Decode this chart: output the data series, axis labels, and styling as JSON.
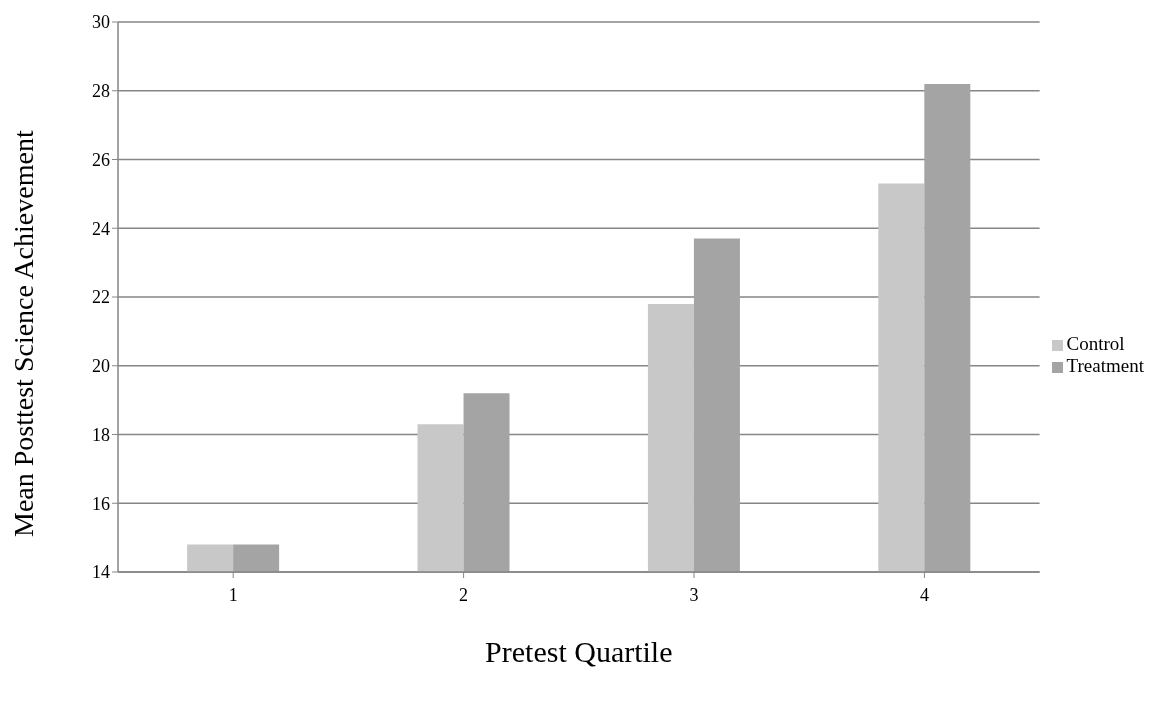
{
  "chart_data": {
    "type": "bar",
    "xlabel": "Pretest Quartile",
    "ylabel": "Mean Posttest Science Achievement",
    "categories": [
      "1",
      "2",
      "3",
      "4"
    ],
    "series": [
      {
        "name": "Control",
        "color": "#c8c8c8",
        "values": [
          14.8,
          18.3,
          21.8,
          25.3
        ]
      },
      {
        "name": "Treatment",
        "color": "#a4a4a4",
        "values": [
          14.8,
          19.2,
          23.7,
          28.2
        ]
      }
    ],
    "ylim": [
      14,
      30
    ],
    "yticks": [
      14,
      16,
      18,
      20,
      22,
      24,
      26,
      28,
      30
    ],
    "grid": "y",
    "legend": "right"
  }
}
